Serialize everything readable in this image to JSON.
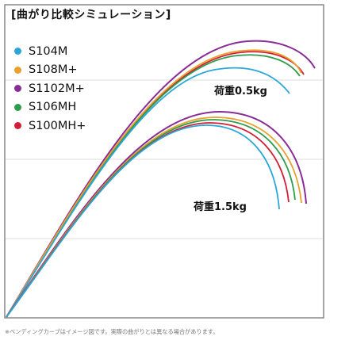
{
  "title": "[曲がり比較シミュレーション]",
  "legend": [
    {
      "name": "S104M",
      "color": "#2aa7d8"
    },
    {
      "name": "S108M+",
      "color": "#e7a12c"
    },
    {
      "name": "S1102M+",
      "color": "#8a2c96"
    },
    {
      "name": "S106MH",
      "color": "#2e9c4d"
    },
    {
      "name": "S100MH+",
      "color": "#d11f37"
    }
  ],
  "loads": {
    "light": "荷重0.5kg",
    "heavy": "荷重1.5kg"
  },
  "footnote": "※ベンディングカーブはイメージ図です。実際の曲がりとは異なる場合があります。",
  "colors": {
    "frame": "#888888",
    "grid": "#dddddd",
    "background": "#ffffff"
  }
}
